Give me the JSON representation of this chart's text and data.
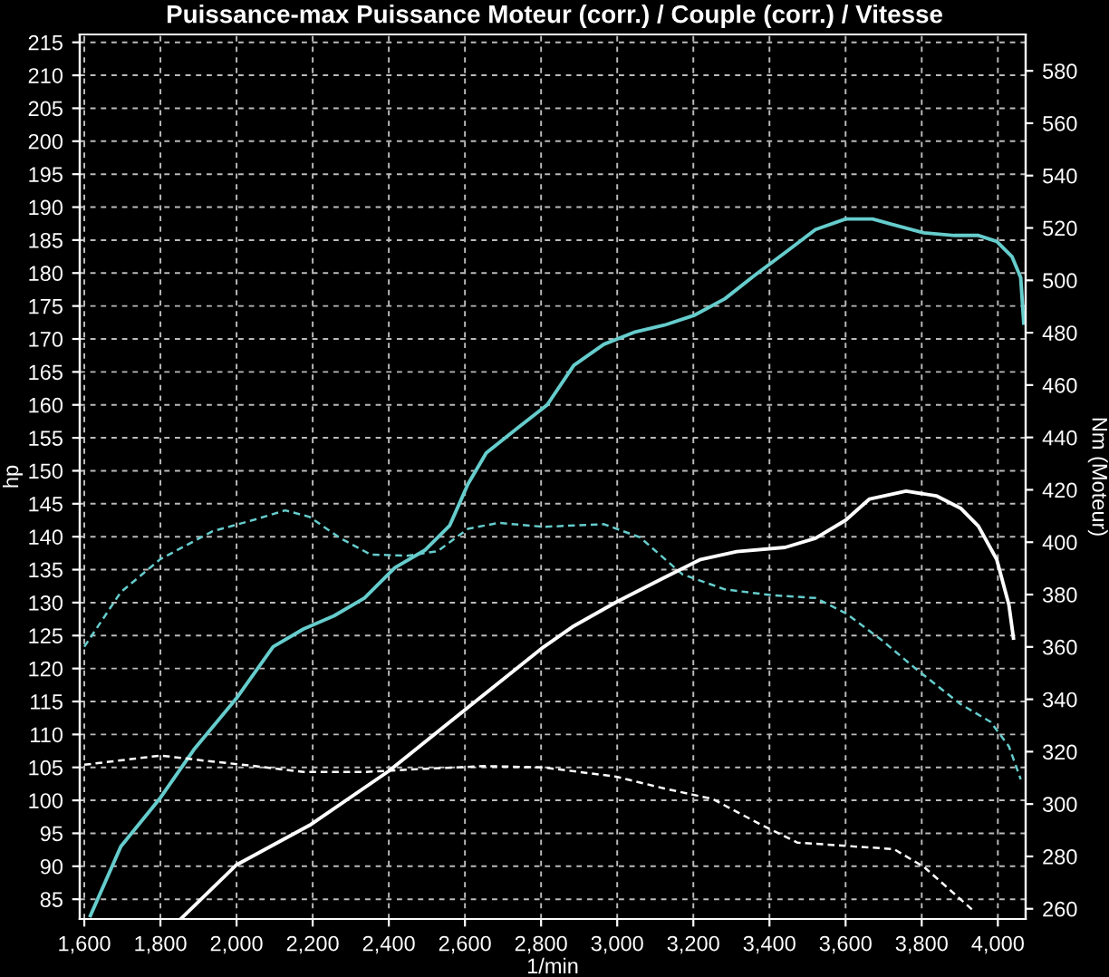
{
  "chart_data": {
    "type": "line",
    "title": "Puissance-max Puissance Moteur (corr.) / Couple (corr.) / Vitesse",
    "xlabel": "1/min",
    "ylabel": "hp",
    "y2label": "Nm (Moteur)",
    "xlim": [
      1588,
      4073
    ],
    "ylim": [
      82,
      216.2
    ],
    "y2lim": [
      256.1,
      593.9
    ],
    "xticks": [
      {
        "value": 1600,
        "label": "1,600"
      },
      {
        "value": 1800,
        "label": "1,800"
      },
      {
        "value": 2000,
        "label": "2,000"
      },
      {
        "value": 2200,
        "label": "2,200"
      },
      {
        "value": 2400,
        "label": "2,400"
      },
      {
        "value": 2600,
        "label": "2,600"
      },
      {
        "value": 2800,
        "label": "2,800"
      },
      {
        "value": 3000,
        "label": "3,000"
      },
      {
        "value": 3200,
        "label": "3,200"
      },
      {
        "value": 3400,
        "label": "3,400"
      },
      {
        "value": 3600,
        "label": "3,600"
      },
      {
        "value": 3800,
        "label": "3,800"
      },
      {
        "value": 4000,
        "label": "4,000"
      }
    ],
    "yticks": [
      85,
      90,
      95,
      100,
      105,
      110,
      115,
      120,
      125,
      130,
      135,
      140,
      145,
      150,
      155,
      160,
      165,
      170,
      175,
      180,
      185,
      190,
      195,
      200,
      205,
      210,
      215
    ],
    "y2ticks": [
      260,
      280,
      300,
      320,
      340,
      360,
      380,
      400,
      420,
      440,
      460,
      480,
      500,
      520,
      540,
      560,
      580
    ],
    "grid": true,
    "legend": false,
    "series": [
      {
        "color": "#66cccc",
        "line_style": "solid",
        "x": [
          1616,
          1696,
          1800,
          1888,
          2000,
          2096,
          2176,
          2256,
          2336,
          2416,
          2496,
          2560,
          2608,
          2656,
          2736,
          2816,
          2886,
          2965,
          3044,
          3124,
          3203,
          3283,
          3362,
          3441,
          3521,
          3600,
          3671,
          3727,
          3806,
          3886,
          3949,
          3997,
          4037,
          4060,
          4068
        ],
        "values": [
          82.5,
          93,
          100.4,
          107.7,
          115.5,
          123.3,
          126,
          128,
          130.7,
          135.3,
          138,
          141.7,
          148,
          152.7,
          156.4,
          160,
          166,
          169.2,
          171,
          172.1,
          173.6,
          176.1,
          179.7,
          183.1,
          186.6,
          188.2,
          188.2,
          187.3,
          186.1,
          185.7,
          185.7,
          184.8,
          182.5,
          179.3,
          172.4
        ]
      },
      {
        "color": "#ffffff",
        "line_style": "solid",
        "axis": "y2",
        "x": [
          1856,
          2000,
          2192,
          2400,
          2608,
          2806,
          2886,
          3000,
          3124,
          3219,
          3314,
          3441,
          3521,
          3600,
          3663,
          3759,
          3838,
          3902,
          3949,
          3997,
          4029,
          4041
        ],
        "values": [
          256.5,
          276.8,
          291.9,
          312.6,
          336.9,
          359.9,
          368,
          377.3,
          386.5,
          393.4,
          396.4,
          398,
          401.5,
          408.4,
          416.5,
          419.5,
          417.7,
          413,
          406.1,
          393.4,
          376.1,
          363.4
        ]
      },
      {
        "color": "#66cccc",
        "line_style": "dashed",
        "x": [
          1600,
          1696,
          1800,
          1936,
          2048,
          2128,
          2192,
          2272,
          2352,
          2448,
          2528,
          2608,
          2688,
          2806,
          2965,
          3060,
          3171,
          3283,
          3410,
          3521,
          3600,
          3695,
          3790,
          3902,
          3981,
          4029,
          4060
        ],
        "values": [
          123.3,
          131.6,
          136.6,
          140.8,
          142.6,
          144,
          143,
          139.8,
          137.3,
          137.1,
          137.8,
          141.2,
          142.1,
          141.5,
          141.9,
          139.9,
          134.3,
          132,
          131.1,
          130.7,
          128.4,
          124.3,
          119.7,
          114.6,
          111.9,
          108.2,
          103.2
        ]
      },
      {
        "color": "#ffffff",
        "line_style": "dashed",
        "x": [
          1600,
          1800,
          1904,
          2048,
          2176,
          2336,
          2496,
          2656,
          2806,
          2997,
          3124,
          3251,
          3378,
          3473,
          3600,
          3727,
          3806,
          3933
        ],
        "values": [
          105.4,
          106.8,
          106.1,
          105.2,
          104.3,
          104.3,
          104.8,
          105.2,
          105,
          103.6,
          101.8,
          100.2,
          96.3,
          93.6,
          93.1,
          92.6,
          89.9,
          83.4
        ]
      }
    ]
  }
}
